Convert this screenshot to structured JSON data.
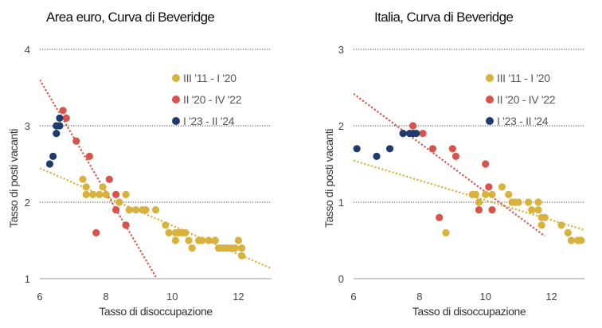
{
  "colors": {
    "series_1": "#d8b23c",
    "series_2": "#d9534a",
    "series_3": "#1f3b6e",
    "grid": "#444444",
    "axis": "#999999"
  },
  "chart_data": [
    {
      "type": "scatter",
      "title": "Area euro, Curva di Beveridge",
      "xlabel": "Tasso di disoccupazione",
      "ylabel": "Tasso di posti vacanti",
      "xlim": [
        6,
        13
      ],
      "ylim": [
        1,
        4
      ],
      "xticks": [
        6,
        8,
        10,
        12
      ],
      "yticks": [
        1,
        2,
        3,
        4
      ],
      "grid": "horizontal dotted",
      "legend_position": "top-right",
      "series": [
        {
          "name": "III '11 - I '20",
          "trendline": true,
          "points": [
            [
              7.3,
              2.3
            ],
            [
              7.4,
              2.2
            ],
            [
              7.4,
              2.1
            ],
            [
              7.6,
              2.1
            ],
            [
              7.8,
              2.1
            ],
            [
              7.9,
              2.2
            ],
            [
              8.0,
              2.1
            ],
            [
              8.4,
              2.0
            ],
            [
              8.6,
              2.1
            ],
            [
              8.7,
              1.9
            ],
            [
              8.9,
              1.9
            ],
            [
              9.1,
              1.9
            ],
            [
              9.2,
              1.9
            ],
            [
              9.5,
              1.9
            ],
            [
              9.8,
              1.7
            ],
            [
              9.9,
              1.6
            ],
            [
              10.1,
              1.6
            ],
            [
              10.1,
              1.5
            ],
            [
              10.2,
              1.6
            ],
            [
              10.3,
              1.6
            ],
            [
              10.4,
              1.6
            ],
            [
              10.5,
              1.5
            ],
            [
              10.6,
              1.4
            ],
            [
              10.8,
              1.5
            ],
            [
              10.9,
              1.5
            ],
            [
              11.1,
              1.5
            ],
            [
              11.3,
              1.5
            ],
            [
              11.4,
              1.4
            ],
            [
              11.5,
              1.4
            ],
            [
              11.6,
              1.4
            ],
            [
              11.7,
              1.4
            ],
            [
              11.8,
              1.4
            ],
            [
              11.9,
              1.4
            ],
            [
              12.0,
              1.5
            ],
            [
              12.1,
              1.4
            ],
            [
              12.1,
              1.3
            ]
          ]
        },
        {
          "name": "II '20 - IV '22",
          "trendline": true,
          "points": [
            [
              6.7,
              3.2
            ],
            [
              6.8,
              3.1
            ],
            [
              7.1,
              2.8
            ],
            [
              7.5,
              2.6
            ],
            [
              7.7,
              1.6
            ],
            [
              8.1,
              2.3
            ],
            [
              8.3,
              2.1
            ],
            [
              8.3,
              1.9
            ],
            [
              8.6,
              1.7
            ]
          ]
        },
        {
          "name": "I '23 - II '24",
          "trendline": false,
          "points": [
            [
              6.3,
              2.5
            ],
            [
              6.4,
              2.6
            ],
            [
              6.5,
              2.9
            ],
            [
              6.5,
              3.0
            ],
            [
              6.6,
              3.0
            ],
            [
              6.6,
              3.1
            ]
          ]
        }
      ]
    },
    {
      "type": "scatter",
      "title": "Italia, Curva di Beveridge",
      "xlabel": "Tasso di disoccupazione",
      "ylabel": "Tasso di posti vacanti",
      "xlim": [
        6,
        13
      ],
      "ylim": [
        0,
        3
      ],
      "xticks": [
        6,
        8,
        10,
        12
      ],
      "yticks": [
        0,
        1,
        2,
        3
      ],
      "grid": "horizontal dotted",
      "legend_position": "top-right",
      "series": [
        {
          "name": "III '11 - I '20",
          "trendline": true,
          "points": [
            [
              8.8,
              0.6
            ],
            [
              9.6,
              1.1
            ],
            [
              9.7,
              1.1
            ],
            [
              9.8,
              1.0
            ],
            [
              10.0,
              1.1
            ],
            [
              10.2,
              1.1
            ],
            [
              10.5,
              1.2
            ],
            [
              10.7,
              1.1
            ],
            [
              10.8,
              1.0
            ],
            [
              10.9,
              1.0
            ],
            [
              11.0,
              1.0
            ],
            [
              11.3,
              1.0
            ],
            [
              11.4,
              0.9
            ],
            [
              11.6,
              0.9
            ],
            [
              11.6,
              1.0
            ],
            [
              11.7,
              0.8
            ],
            [
              11.7,
              0.7
            ],
            [
              11.8,
              0.8
            ],
            [
              12.3,
              0.7
            ],
            [
              12.5,
              0.6
            ],
            [
              12.6,
              0.5
            ],
            [
              12.8,
              0.5
            ],
            [
              12.9,
              0.5
            ]
          ]
        },
        {
          "name": "II '20 - IV '22",
          "trendline": true,
          "points": [
            [
              7.8,
              2.0
            ],
            [
              8.1,
              1.9
            ],
            [
              8.4,
              1.7
            ],
            [
              8.6,
              0.8
            ],
            [
              9.0,
              1.7
            ],
            [
              9.1,
              1.6
            ],
            [
              9.8,
              0.9
            ],
            [
              10.0,
              1.5
            ],
            [
              10.1,
              1.2
            ],
            [
              10.2,
              0.9
            ]
          ]
        },
        {
          "name": "I '23 - II '24",
          "trendline": false,
          "points": [
            [
              6.1,
              1.7
            ],
            [
              6.7,
              1.6
            ],
            [
              7.1,
              1.7
            ],
            [
              7.5,
              1.9
            ],
            [
              7.7,
              1.9
            ],
            [
              7.8,
              1.9
            ],
            [
              7.9,
              1.9
            ]
          ]
        }
      ]
    }
  ]
}
